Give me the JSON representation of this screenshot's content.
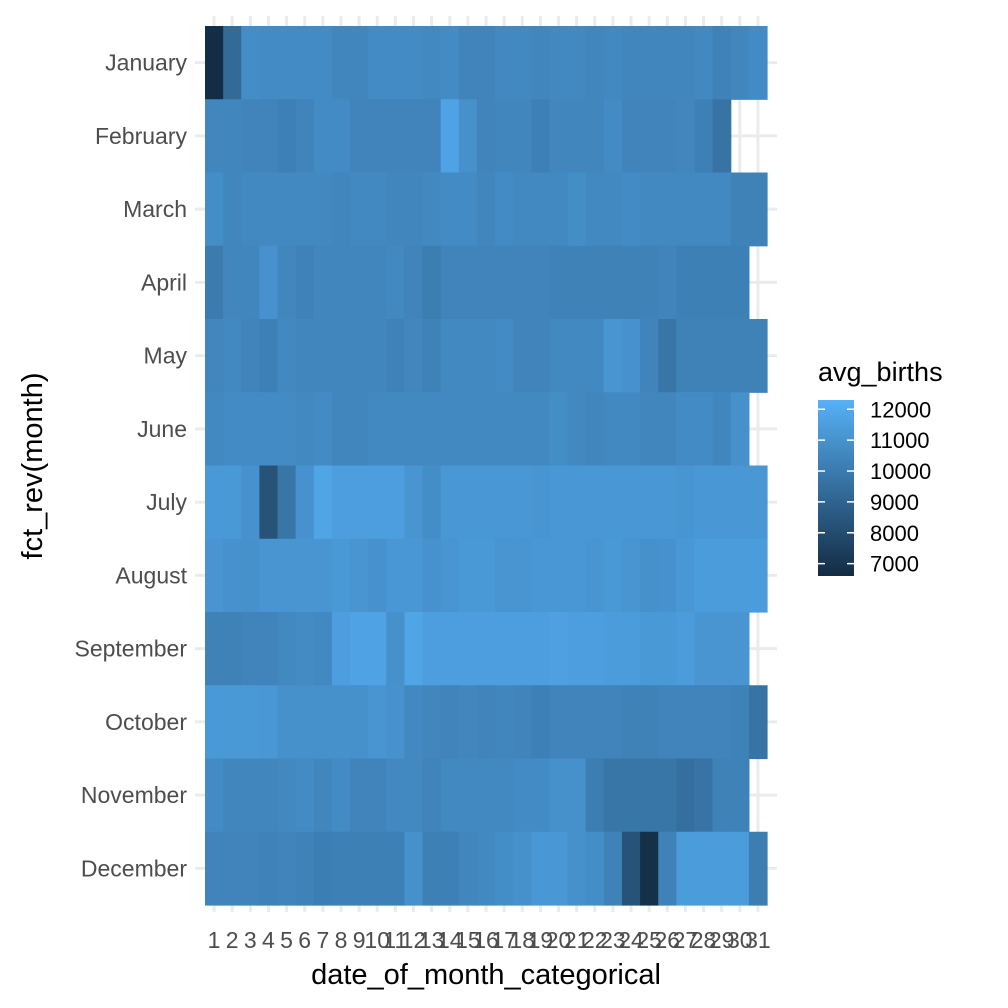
{
  "chart_data": {
    "type": "heatmap",
    "xlabel": "date_of_month_categorical",
    "ylabel": "fct_rev(month)",
    "x_categories": [
      "1",
      "2",
      "3",
      "4",
      "5",
      "6",
      "7",
      "8",
      "9",
      "10",
      "11",
      "12",
      "13",
      "14",
      "15",
      "16",
      "17",
      "18",
      "19",
      "20",
      "21",
      "22",
      "23",
      "24",
      "25",
      "26",
      "27",
      "28",
      "29",
      "30",
      "31"
    ],
    "y_categories": [
      "January",
      "February",
      "March",
      "April",
      "May",
      "June",
      "July",
      "August",
      "September",
      "October",
      "November",
      "December"
    ],
    "legend": {
      "title": "avg_births",
      "placement": "right",
      "labels": [
        "12000",
        "11000",
        "10000",
        "9000",
        "8000",
        "7000"
      ],
      "breaks": [
        12000,
        11000,
        10000,
        9000,
        8000,
        7000
      ],
      "range": [
        6600,
        12300
      ],
      "color_low": "#132B43",
      "color_high": "#56B1F7"
    },
    "values": [
      [
        6700,
        9300,
        10800,
        10700,
        10700,
        10700,
        10700,
        10500,
        10500,
        10700,
        10700,
        10700,
        10600,
        10700,
        10400,
        10400,
        10600,
        10600,
        10500,
        10600,
        10600,
        10500,
        10600,
        10500,
        10500,
        10500,
        10500,
        10600,
        10300,
        10500,
        10700
      ],
      [
        10500,
        10500,
        10400,
        10400,
        10200,
        10400,
        10700,
        10700,
        10400,
        10400,
        10400,
        10400,
        10400,
        11700,
        10900,
        10400,
        10500,
        10500,
        10200,
        10500,
        10500,
        10500,
        10700,
        10400,
        10400,
        10400,
        10500,
        10200,
        9700,
        null,
        null
      ],
      [
        10800,
        10500,
        10600,
        10600,
        10600,
        10600,
        10600,
        10500,
        10600,
        10600,
        10500,
        10500,
        10600,
        10700,
        10700,
        10500,
        10700,
        10600,
        10600,
        10600,
        10800,
        10600,
        10600,
        10700,
        10600,
        10600,
        10600,
        10600,
        10600,
        10300,
        10300
      ],
      [
        10000,
        10500,
        10500,
        11000,
        10500,
        10300,
        10500,
        10500,
        10500,
        10500,
        10600,
        10400,
        10100,
        10400,
        10400,
        10400,
        10400,
        10400,
        10400,
        10300,
        10300,
        10300,
        10300,
        10300,
        10300,
        10400,
        10200,
        10200,
        10200,
        10200,
        null
      ],
      [
        10500,
        10600,
        10400,
        10200,
        10600,
        10500,
        10500,
        10500,
        10500,
        10500,
        10300,
        10500,
        10300,
        10600,
        10600,
        10600,
        10700,
        10400,
        10400,
        10600,
        10600,
        10600,
        11100,
        11000,
        10400,
        9800,
        10300,
        10300,
        10300,
        10300,
        10300
      ],
      [
        10600,
        10700,
        10700,
        10700,
        10700,
        10600,
        10700,
        10500,
        10500,
        10600,
        10600,
        10600,
        10600,
        10600,
        10600,
        10600,
        10600,
        10600,
        10600,
        10800,
        10600,
        10500,
        10600,
        10600,
        10500,
        10500,
        10700,
        10700,
        10500,
        10900,
        null
      ],
      [
        11300,
        11300,
        11000,
        8300,
        9800,
        11000,
        11800,
        11500,
        11500,
        11500,
        11500,
        11100,
        10800,
        11200,
        11200,
        11200,
        11200,
        11200,
        11100,
        11200,
        11200,
        11200,
        11200,
        11200,
        11200,
        11200,
        11100,
        11200,
        11200,
        11200,
        11200
      ],
      [
        11100,
        11000,
        10900,
        11100,
        11100,
        11100,
        11100,
        11300,
        11100,
        11000,
        11200,
        11200,
        11000,
        11100,
        11300,
        11300,
        11100,
        11100,
        11200,
        11200,
        11200,
        11100,
        11300,
        11100,
        10900,
        11000,
        11200,
        11400,
        11400,
        11400,
        11400
      ],
      [
        10300,
        10300,
        10400,
        10400,
        10600,
        10700,
        10600,
        11500,
        11700,
        11700,
        10900,
        11800,
        11500,
        11500,
        11500,
        11500,
        11500,
        11500,
        11500,
        11600,
        11500,
        11500,
        11400,
        11400,
        11300,
        11300,
        11400,
        11100,
        11100,
        11100,
        null
      ],
      [
        11300,
        11300,
        11300,
        11200,
        10900,
        10900,
        10900,
        10900,
        10900,
        11100,
        11000,
        10600,
        10500,
        10400,
        10500,
        10400,
        10500,
        10400,
        10200,
        10400,
        10400,
        10400,
        10400,
        10300,
        10300,
        10400,
        10400,
        10400,
        10400,
        10300,
        9700
      ],
      [
        10700,
        10500,
        10500,
        10500,
        10600,
        10700,
        10500,
        10700,
        10400,
        10400,
        10600,
        10600,
        10400,
        10600,
        10600,
        10600,
        10600,
        10700,
        10700,
        10900,
        10900,
        10100,
        9800,
        9800,
        9800,
        9800,
        9500,
        9700,
        10300,
        10300,
        null
      ],
      [
        10400,
        10400,
        10400,
        10300,
        10400,
        10300,
        10100,
        10200,
        10200,
        10200,
        10200,
        10900,
        10200,
        10200,
        10500,
        10600,
        10800,
        10900,
        11200,
        11200,
        10900,
        10800,
        10300,
        8300,
        6800,
        10300,
        11400,
        11400,
        11400,
        11400,
        10100
      ]
    ]
  }
}
